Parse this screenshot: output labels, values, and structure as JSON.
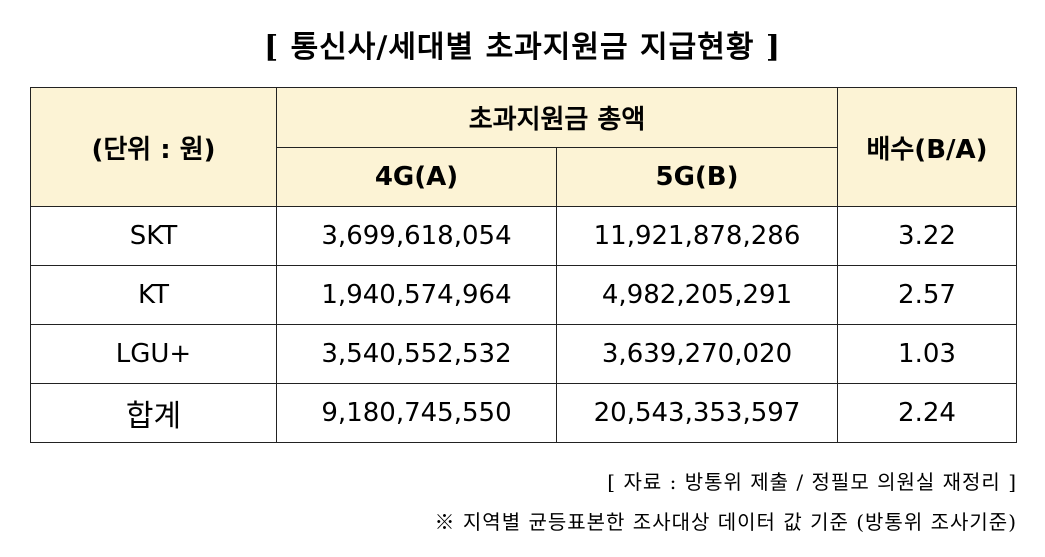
{
  "title": "[ 통신사/세대별 초과지원금 지급현황 ]",
  "table": {
    "unit_header": "(단위 : 원)",
    "group_header": "초과지원금 총액",
    "col_4g": "4G(A)",
    "col_5g": "5G(B)",
    "col_ratio": "배수(B/A)",
    "rows": [
      {
        "carrier": "SKT",
        "lte": "3,699,618,054",
        "nr": "11,921,878,286",
        "ratio": "3.22"
      },
      {
        "carrier": "KT",
        "lte": "1,940,574,964",
        "nr": "4,982,205,291",
        "ratio": "2.57"
      },
      {
        "carrier": "LGU+",
        "lte": "3,540,552,532",
        "nr": "3,639,270,020",
        "ratio": "1.03"
      }
    ],
    "total": {
      "label": "합계",
      "lte": "9,180,745,550",
      "nr": "20,543,353,597",
      "ratio": "2.24"
    }
  },
  "notes": {
    "source": "[ 자료 : 방통위 제출 / 정필모 의원실 재정리 ]",
    "footnote": "※ 지역별 균등표본한 조사대상 데이터 값 기준 (방통위 조사기준)"
  },
  "colors": {
    "header_bg": "#fcf3d5",
    "border": "#222222"
  }
}
